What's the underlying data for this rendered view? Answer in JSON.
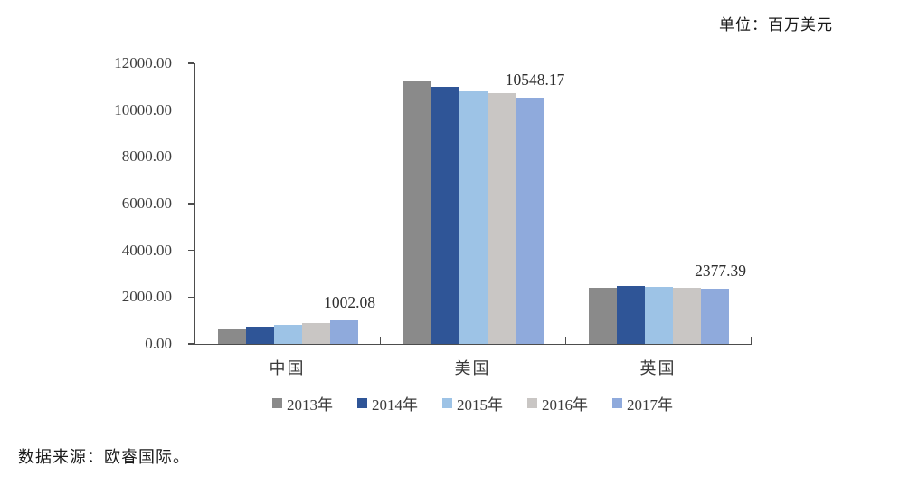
{
  "unit_label": "单位：百万美元",
  "source_note": "数据来源：欧睿国际。",
  "chart_data": {
    "type": "bar",
    "title": "",
    "xlabel": "",
    "ylabel": "",
    "unit": "百万美元",
    "grid": false,
    "legend_position": "bottom",
    "categories": [
      "中国",
      "美国",
      "英国"
    ],
    "series": [
      {
        "name": "2013年",
        "color": "#8A8A8A",
        "values": [
          650,
          11250,
          2400
        ]
      },
      {
        "name": "2014年",
        "color": "#2F5597",
        "values": [
          740,
          10980,
          2465
        ]
      },
      {
        "name": "2015年",
        "color": "#9DC3E6",
        "values": [
          820,
          10820,
          2420
        ]
      },
      {
        "name": "2016年",
        "color": "#C9C6C4",
        "values": [
          895,
          10720,
          2395
        ]
      },
      {
        "name": "2017年",
        "color": "#8FAADC",
        "values": [
          1002.08,
          10548.17,
          2377.39
        ]
      }
    ],
    "data_labels": [
      "1002.08",
      "10548.17",
      "2377.39"
    ],
    "data_label_series": "2017年",
    "ylim": [
      0,
      12000
    ],
    "ytick_labels": [
      "0.00",
      "2000.00",
      "4000.00",
      "6000.00",
      "8000.00",
      "10000.00",
      "12000.00"
    ]
  }
}
